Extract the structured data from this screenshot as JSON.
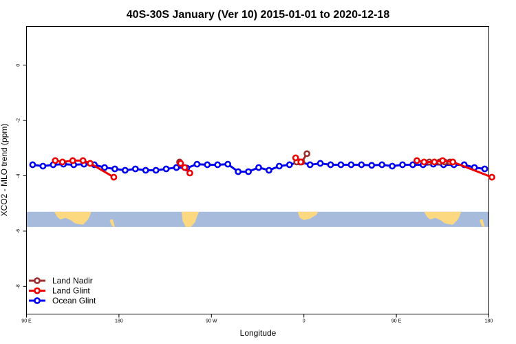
{
  "chart_data": {
    "type": "line",
    "title": "40S-30S January (Ver 10)   2015-01-01 to 2020-12-18",
    "xlabel": "Longitude",
    "ylabel": "XCO2 - MLO trend (ppm)",
    "xlim": [
      90,
      540
    ],
    "ylim": [
      -9,
      1.4
    ],
    "x_ticks": [
      {
        "value": 90,
        "label": "90 E"
      },
      {
        "value": 180,
        "label": "180"
      },
      {
        "value": 270,
        "label": "90 W"
      },
      {
        "value": 360,
        "label": "0"
      },
      {
        "value": 450,
        "label": "90 E"
      },
      {
        "value": 540,
        "label": "180"
      }
    ],
    "y_ticks": [
      {
        "value": 0,
        "label": "0"
      },
      {
        "value": -2,
        "label": "-2"
      },
      {
        "value": -4,
        "label": "-4"
      },
      {
        "value": -6,
        "label": "-6"
      },
      {
        "value": -8,
        "label": "-8"
      }
    ],
    "legend_position": "bottom-left",
    "map_strip": {
      "lat_range": "40S-30S",
      "y_range": [
        -5.85,
        -5.3
      ],
      "ocean_color": "#a7bcdc",
      "land_color": "#fcd981"
    },
    "series": [
      {
        "name": "Land Nadir",
        "color": "#9c2e2e",
        "x": [
          [
            353,
            358,
            363
          ],
          [
            239
          ],
          [
            482,
            492,
            497,
            502
          ]
        ],
        "y": [
          [
            -3.5,
            -3.5,
            -3.2
          ],
          [
            -3.5
          ],
          [
            -3.5,
            -3.5,
            -3.5,
            -3.5
          ]
        ]
      },
      {
        "name": "Land Glint",
        "color": "#ee0000",
        "x": [
          [
            118,
            125,
            135,
            145,
            152,
            175
          ],
          [
            240,
            244,
            249
          ],
          [
            352,
            357
          ],
          [
            470,
            477,
            487,
            495,
            505,
            543
          ]
        ],
        "y": [
          [
            -3.45,
            -3.5,
            -3.45,
            -3.45,
            -3.55,
            -4.05
          ],
          [
            -3.55,
            -3.7,
            -3.9
          ],
          [
            -3.35,
            -3.5
          ],
          [
            -3.45,
            -3.5,
            -3.5,
            -3.45,
            -3.5,
            -4.05
          ]
        ]
      },
      {
        "name": "Ocean Glint",
        "color": "#0000ee",
        "x": [
          [
            96,
            106,
            116,
            126,
            136,
            146,
            156,
            166,
            176,
            186,
            196,
            206,
            216,
            226,
            236,
            246,
            256,
            266,
            276,
            286,
            296,
            306,
            316,
            326,
            336,
            346,
            356,
            366,
            376,
            386,
            396,
            406,
            416,
            426,
            436,
            446,
            456,
            466,
            476,
            486,
            496,
            506,
            516,
            526,
            536
          ]
        ],
        "y": [
          [
            -3.6,
            -3.65,
            -3.6,
            -3.58,
            -3.6,
            -3.58,
            -3.6,
            -3.7,
            -3.75,
            -3.8,
            -3.75,
            -3.8,
            -3.8,
            -3.75,
            -3.7,
            -3.72,
            -3.58,
            -3.6,
            -3.6,
            -3.58,
            -3.85,
            -3.85,
            -3.7,
            -3.8,
            -3.65,
            -3.6,
            -3.5,
            -3.6,
            -3.55,
            -3.6,
            -3.6,
            -3.6,
            -3.6,
            -3.62,
            -3.6,
            -3.65,
            -3.6,
            -3.6,
            -3.6,
            -3.58,
            -3.6,
            -3.6,
            -3.6,
            -3.7,
            -3.75
          ]
        ]
      }
    ]
  }
}
